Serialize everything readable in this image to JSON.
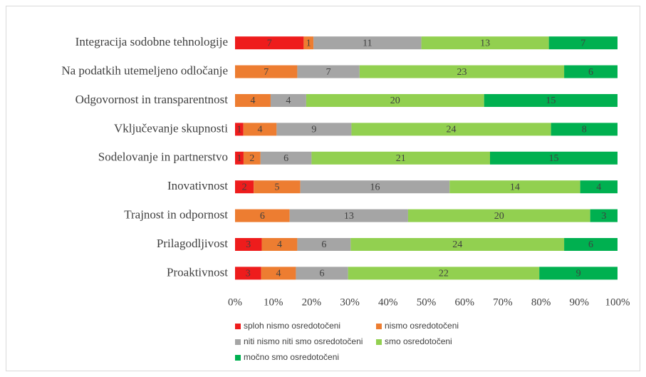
{
  "chart_data": {
    "type": "bar",
    "orientation": "horizontal",
    "stacking": "percent",
    "categories": [
      "Integracija sodobne tehnologije",
      "Na podatkih utemeljeno odločanje",
      "Odgovornost in transparentnost",
      "Vključevanje skupnosti",
      "Sodelovanje in partnerstvo",
      "Inovativnost",
      "Trajnost in odpornost",
      "Prilagodljivost",
      "Proaktivnost"
    ],
    "series": [
      {
        "name": "sploh nismo osredotočeni",
        "color": "#ee1c1c",
        "values": [
          7,
          null,
          null,
          1,
          1,
          2,
          null,
          3,
          3
        ]
      },
      {
        "name": "nismo osredotočeni",
        "color": "#ed7d31",
        "values": [
          1,
          7,
          4,
          4,
          2,
          5,
          6,
          4,
          4
        ]
      },
      {
        "name": "niti nismo niti smo osredotočeni",
        "color": "#a5a5a5",
        "values": [
          11,
          7,
          4,
          9,
          6,
          16,
          13,
          6,
          6
        ]
      },
      {
        "name": "smo osredotočeni",
        "color": "#92d050",
        "values": [
          13,
          23,
          20,
          24,
          21,
          14,
          20,
          24,
          22
        ]
      },
      {
        "name": "močno smo osredotočeni",
        "color": "#00b050",
        "values": [
          7,
          6,
          15,
          8,
          15,
          4,
          3,
          6,
          9
        ]
      }
    ],
    "xlim": [
      0,
      100
    ],
    "xticks": [
      {
        "value": 0,
        "label": "0%"
      },
      {
        "value": 10,
        "label": "10%"
      },
      {
        "value": 20,
        "label": "20%"
      },
      {
        "value": 30,
        "label": "30%"
      },
      {
        "value": 40,
        "label": "40%"
      },
      {
        "value": 50,
        "label": "50%"
      },
      {
        "value": 60,
        "label": "60%"
      },
      {
        "value": 70,
        "label": "70%"
      },
      {
        "value": 80,
        "label": "80%"
      },
      {
        "value": 90,
        "label": "90%"
      },
      {
        "value": 100,
        "label": "100%"
      }
    ],
    "legend": "bottom"
  }
}
